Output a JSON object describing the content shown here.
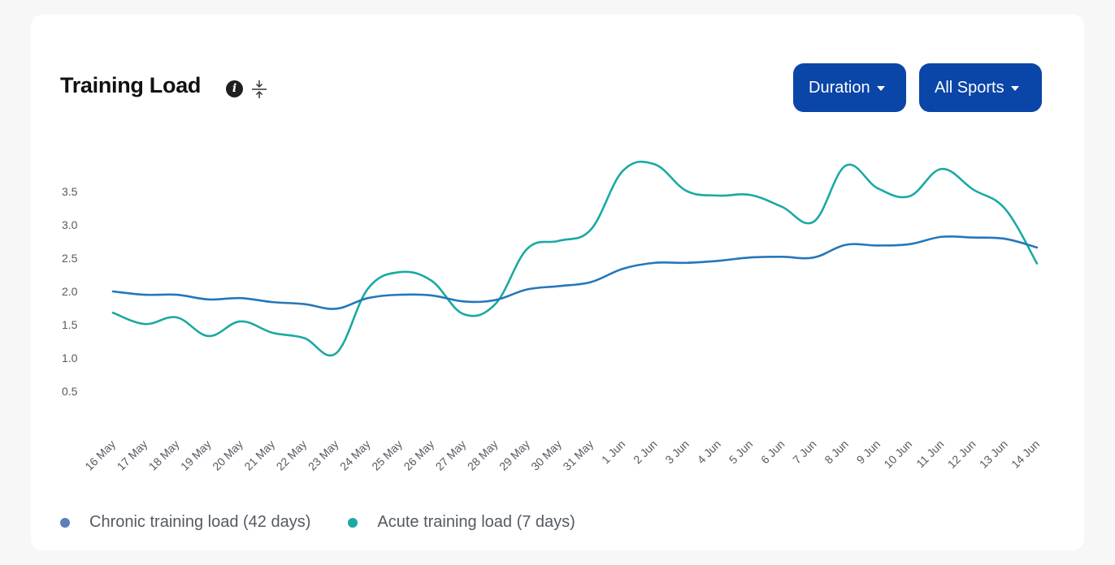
{
  "card": {
    "title": "Training Load",
    "info_icon": "info-icon",
    "compress_icon": "compress-icon"
  },
  "toolbar": {
    "duration_label": "Duration",
    "sports_label": "All Sports"
  },
  "colors": {
    "button_bg": "#0a45a8",
    "chronic": "#2477bb",
    "acute": "#1ba9a4"
  },
  "chart_data": {
    "type": "line",
    "title": "",
    "xlabel": "",
    "ylabel": "",
    "ylim": [
      0,
      4.0
    ],
    "yticks": [
      "0.5",
      "1.0",
      "1.5",
      "2.0",
      "2.5",
      "3.0",
      "3.5"
    ],
    "grid": false,
    "legend_position": "bottom-left",
    "categories": [
      "16 May",
      "17 May",
      "18 May",
      "19 May",
      "20 May",
      "21 May",
      "22 May",
      "23 May",
      "24 May",
      "25 May",
      "26 May",
      "27 May",
      "28 May",
      "29 May",
      "30 May",
      "31 May",
      "1 Jun",
      "2 Jun",
      "3 Jun",
      "4 Jun",
      "5 Jun",
      "6 Jun",
      "7 Jun",
      "8 Jun",
      "9 Jun",
      "10 Jun",
      "11 Jun",
      "12 Jun",
      "13 Jun",
      "14 Jun"
    ],
    "series": [
      {
        "name": "Chronic training load (42 days)",
        "values": [
          2.0,
          1.95,
          1.95,
          1.88,
          1.9,
          1.84,
          1.81,
          1.74,
          1.9,
          1.95,
          1.94,
          1.85,
          1.87,
          2.03,
          2.08,
          2.14,
          2.34,
          2.43,
          2.43,
          2.46,
          2.51,
          2.52,
          2.51,
          2.7,
          2.69,
          2.71,
          2.82,
          2.81,
          2.79,
          2.66
        ]
      },
      {
        "name": "Acute training load (7 days)",
        "values": [
          1.68,
          1.51,
          1.61,
          1.33,
          1.55,
          1.38,
          1.3,
          1.07,
          2.04,
          2.29,
          2.16,
          1.66,
          1.81,
          2.64,
          2.76,
          2.93,
          3.81,
          3.91,
          3.51,
          3.44,
          3.45,
          3.27,
          3.05,
          3.89,
          3.55,
          3.43,
          3.84,
          3.53,
          3.24,
          2.42
        ]
      }
    ]
  }
}
